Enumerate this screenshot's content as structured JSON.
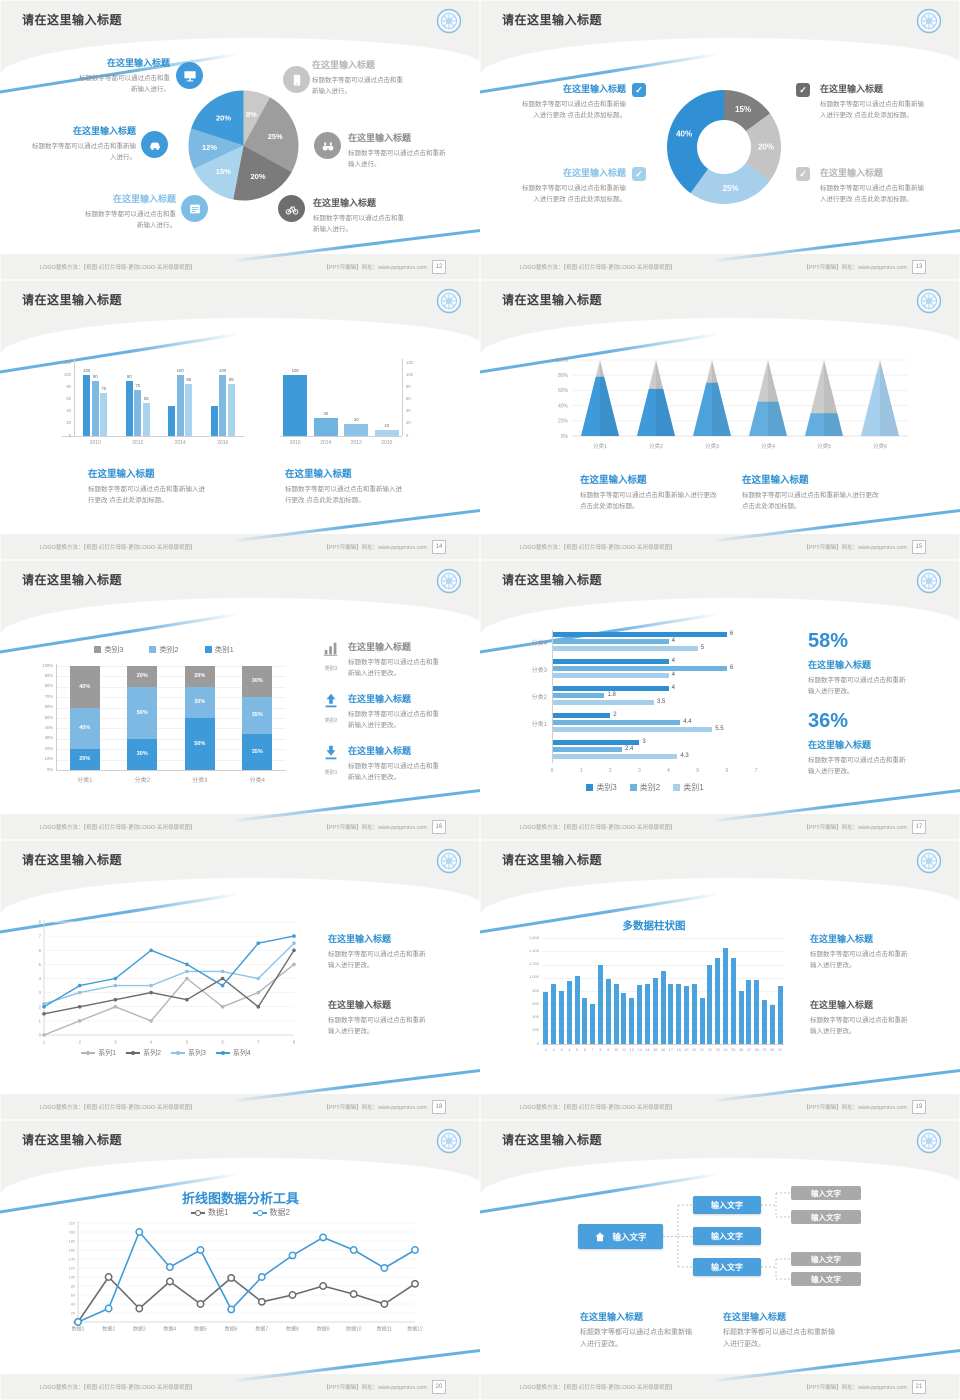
{
  "common": {
    "slide_title": "请在这里输入标题",
    "heading": "在这里输入标题",
    "body_short": "标题数字等都可以通过点击和重新输入进行。",
    "body_long": "标题数字等都可以通过点击和重新输入进行更改 点击此处添加标题。",
    "body_mid": "标题数字等都可以通过点击和重新输入进行更改。",
    "footer_left": "LOGO替换方法：【视图-幻灯片母版-更改LOGO-关闭母版视图】",
    "footer_right": "【PPT可编辑】网址：www.pptgenius.com"
  },
  "pages": [
    "12",
    "13",
    "14",
    "15",
    "16",
    "17",
    "18",
    "19",
    "20",
    "21"
  ],
  "slide6_stats": {
    "stat1": "58%",
    "stat2": "36%"
  },
  "slide5_labels": {
    "cat3": "类别3",
    "cat2": "类别2",
    "cat1": "类别1"
  },
  "org": {
    "node_label": "输入文字"
  },
  "chart_data": [
    {
      "id": "pie1",
      "slide": 1,
      "type": "pie",
      "values": [
        8,
        25,
        20,
        15,
        12,
        20
      ],
      "labels": [
        "8%",
        "25%",
        "20%",
        "15%",
        "12%",
        "20%"
      ],
      "colors": [
        "#c9c9c9",
        "#9d9d9d",
        "#7b7b7b",
        "#aad3ee",
        "#7db9e2",
        "#3f9ad9"
      ]
    },
    {
      "id": "donut1",
      "slide": 2,
      "type": "pie",
      "values": [
        15,
        20,
        25,
        40
      ],
      "labels": [
        "15%",
        "20%",
        "25%",
        "40%"
      ],
      "colors": [
        "#7f7f7f",
        "#c4c4c4",
        "#a6cfec",
        "#3090d3"
      ],
      "hole": true
    },
    {
      "id": "bars_left",
      "slide": 3,
      "type": "bar",
      "categories": [
        "2010",
        "2012",
        "2014",
        "2016"
      ],
      "ymax": 120,
      "yticks": [
        "0",
        "20",
        "40",
        "60",
        "80",
        "100",
        "120"
      ],
      "series": [
        {
          "color": "#3f9ad9",
          "values": [
            100,
            90,
            50,
            50
          ],
          "labels": [
            "100",
            "90",
            "",
            ""
          ]
        },
        {
          "color": "#7db9e2",
          "values": [
            90,
            75,
            100,
            100
          ],
          "labels": [
            "90",
            "75",
            "100",
            "100"
          ]
        },
        {
          "color": "#aad3ee",
          "values": [
            70,
            55,
            85,
            85
          ],
          "labels": [
            "70",
            "55",
            "85",
            "85"
          ]
        }
      ]
    },
    {
      "id": "bars_right",
      "slide": 3,
      "type": "bar",
      "categories": [
        "2016",
        "2014",
        "2012",
        "2010"
      ],
      "ymax": 120,
      "yticks": [
        "0",
        "20",
        "40",
        "60",
        "80",
        "100",
        "120"
      ],
      "series": [
        {
          "colors": [
            "#3f9ad9",
            "#6fb3e0",
            "#8cc3e7",
            "#aad3ee"
          ],
          "values": [
            100,
            30,
            20,
            10
          ],
          "labels": [
            "100",
            "30",
            "20",
            "10"
          ]
        }
      ]
    },
    {
      "id": "pyramid",
      "slide": 4,
      "type": "pyramid",
      "categories": [
        "分类1",
        "分类2",
        "分类3",
        "分类4",
        "分类5",
        "分类6"
      ],
      "values": [
        78,
        62,
        70,
        45,
        30,
        88
      ],
      "colors": [
        "#3f9ad9",
        "#3f9ad9",
        "#4da2db",
        "#63aede",
        "#63aede",
        "#a5cfec"
      ],
      "gray": "#cbcbcb",
      "yticks": [
        "0%",
        "20%",
        "40%",
        "60%",
        "80%",
        "100%"
      ],
      "ymax": 100
    },
    {
      "id": "stacked",
      "slide": 5,
      "type": "stacked_bar",
      "categories": [
        "分类1",
        "分类2",
        "分类3",
        "分类4"
      ],
      "yticks": [
        "0%",
        "10%",
        "20%",
        "30%",
        "40%",
        "50%",
        "60%",
        "70%",
        "80%",
        "90%",
        "100%"
      ],
      "series": [
        {
          "name": "类别1",
          "color": "#3f9ad9",
          "values": [
            20,
            30,
            50,
            35
          ]
        },
        {
          "name": "类别2",
          "color": "#7db9e2",
          "values": [
            40,
            50,
            30,
            35
          ]
        },
        {
          "name": "类别3",
          "color": "#9b9b9b",
          "values": [
            40,
            20,
            20,
            30
          ]
        }
      ],
      "legend": [
        {
          "name": "类别3",
          "color": "#9b9b9b"
        },
        {
          "name": "类别2",
          "color": "#7db9e2"
        },
        {
          "name": "类别1",
          "color": "#3f9ad9"
        }
      ]
    },
    {
      "id": "hbar",
      "slide": 6,
      "type": "hbar",
      "xmax": 7,
      "xticks": [
        "0",
        "1",
        "2",
        "3",
        "4",
        "5",
        "6",
        "7"
      ],
      "colors": [
        "#2f8fd2",
        "#6fb3e0",
        "#a6cfec"
      ],
      "groups": [
        {
          "label": "分类4",
          "values": [
            6,
            4,
            5
          ]
        },
        {
          "label": "分类3",
          "values": [
            4,
            6,
            4
          ]
        },
        {
          "label": "分类2",
          "values": [
            4,
            1.8,
            3.5
          ]
        },
        {
          "label": "分类1",
          "values": [
            2,
            4.4,
            5.5
          ]
        },
        {
          "label": "",
          "values": [
            3,
            2.4,
            4.3
          ]
        }
      ],
      "legend": [
        {
          "name": "类别3",
          "color": "#2f8fd2"
        },
        {
          "name": "类别2",
          "color": "#6fb3e0"
        },
        {
          "name": "类别1",
          "color": "#a6cfec"
        }
      ]
    },
    {
      "id": "line4",
      "slide": 7,
      "type": "line",
      "x_labels": [
        "1",
        "2",
        "3",
        "4",
        "5",
        "6",
        "7",
        "8"
      ],
      "ymax": 8,
      "yticks": [
        "0",
        "1",
        "2",
        "3",
        "4",
        "5",
        "6",
        "7",
        "8"
      ],
      "series": [
        {
          "name": "系列1",
          "color": "#b5b5b5",
          "values": [
            0,
            1,
            2,
            1,
            4,
            2,
            3,
            5
          ]
        },
        {
          "name": "系列2",
          "color": "#6b6b6b",
          "values": [
            1.5,
            2,
            2.5,
            3,
            2.5,
            4,
            2,
            6
          ]
        },
        {
          "name": "系列3",
          "color": "#8cc3e7",
          "values": [
            2.2,
            3,
            3.5,
            3.5,
            4.5,
            4.5,
            4,
            6.5
          ]
        },
        {
          "name": "系列4",
          "color": "#3f9ad9",
          "values": [
            2,
            3.5,
            4,
            6,
            5,
            3.5,
            6.5,
            7
          ]
        }
      ]
    },
    {
      "id": "columns",
      "slide": 8,
      "type": "column",
      "title": "多数据柱状图",
      "color": "#4aa3dc",
      "ymax": 1600,
      "yticks": [
        "0",
        "200",
        "400",
        "600",
        "800",
        "1,000",
        "1,200",
        "1,400",
        "1,600"
      ],
      "x_labels": [
        "1",
        "2",
        "3",
        "4",
        "5",
        "6",
        "7",
        "8",
        "9",
        "10",
        "11",
        "12",
        "13",
        "14",
        "15",
        "16",
        "17",
        "18",
        "19",
        "20",
        "21",
        "22",
        "23",
        "24",
        "25",
        "26",
        "27",
        "28",
        "29",
        "30",
        "31"
      ],
      "values": [
        780,
        900,
        800,
        950,
        1020,
        700,
        600,
        1200,
        980,
        900,
        770,
        690,
        890,
        900,
        1000,
        1100,
        910,
        900,
        880,
        910,
        690,
        1190,
        1300,
        1450,
        1300,
        800,
        960,
        970,
        660,
        590,
        870
      ]
    },
    {
      "id": "line2",
      "slide": 9,
      "type": "line",
      "title": "折线图数据分析工具",
      "x_labels": [
        "数据1",
        "数据2",
        "数据3",
        "数据4",
        "数据5",
        "数据6",
        "数据7",
        "数据8",
        "数据9",
        "数据10",
        "数据11",
        "数据12"
      ],
      "ymax": 220,
      "yticks": [
        "0",
        "20",
        "40",
        "60",
        "80",
        "100",
        "120",
        "140",
        "160",
        "180",
        "200",
        "220"
      ],
      "series": [
        {
          "name": "数据1",
          "color": "#6b6b6b",
          "values": [
            0,
            100,
            30,
            90,
            40,
            98,
            45,
            60,
            80,
            62,
            40,
            85
          ]
        },
        {
          "name": "数据2",
          "color": "#3f9ad9",
          "values": [
            0,
            30,
            200,
            122,
            160,
            28,
            100,
            148,
            188,
            160,
            120,
            160
          ]
        }
      ]
    },
    {
      "id": "org",
      "slide": 10,
      "type": "diagram",
      "root": "输入文字",
      "level2": [
        "输入文字",
        "输入文字",
        "输入文字"
      ],
      "level3": [
        "输入文字",
        "输入文字",
        "输入文字",
        "输入文字"
      ]
    }
  ]
}
